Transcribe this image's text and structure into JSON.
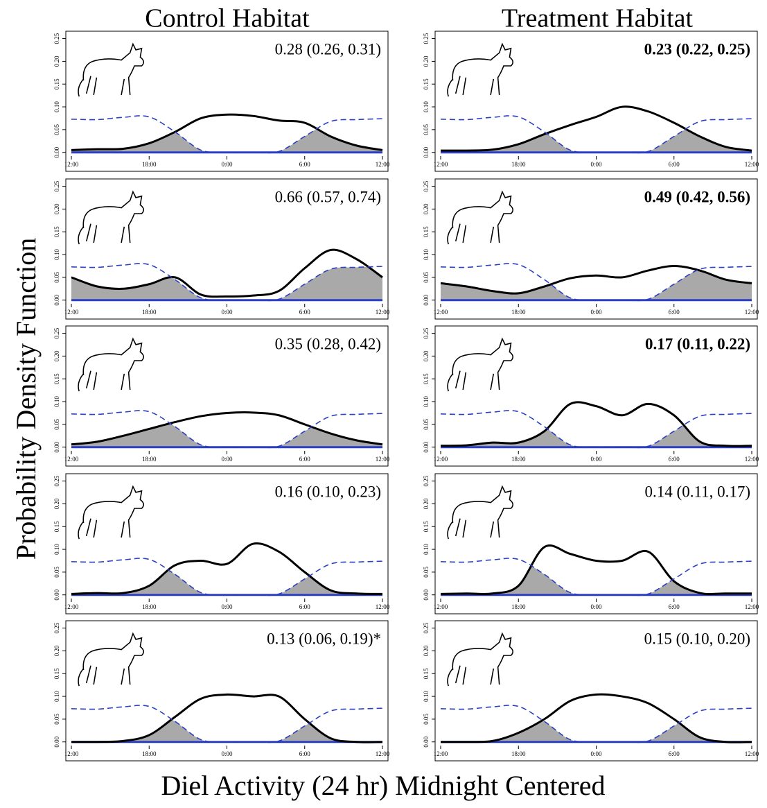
{
  "figure": {
    "column_titles": [
      "Control Habitat",
      "Treatment Habitat"
    ],
    "ylabel": "Probability Density Function",
    "xlabel": "Diel Activity (24 hr) Midnight Centered"
  },
  "chart_data": [
    {
      "type": "line",
      "annotation": "0.28 (0.26, 0.31)",
      "annotation_bold": false,
      "x": [
        -12,
        -10,
        -8,
        -6,
        -4,
        -2,
        0,
        2,
        4,
        6,
        8,
        10,
        12
      ],
      "xlim": [
        -12,
        12
      ],
      "xticks": [
        {
          "value": -12,
          "label": "12:00"
        },
        {
          "value": -6,
          "label": "18:00"
        },
        {
          "value": 0,
          "label": "0:00"
        },
        {
          "value": 6,
          "label": "6:00"
        },
        {
          "value": 12,
          "label": "12:00"
        }
      ],
      "ylim": [
        -0.005,
        0.26
      ],
      "yticks": [
        {
          "value": 0,
          "label": "0.00"
        },
        0.05,
        {
          "value": 0.1,
          "label": "0.10"
        },
        0.15,
        {
          "value": 0.2,
          "label": "0.20"
        },
        0.25
      ],
      "overlap_color": "#a9a9a9",
      "series": [
        {
          "color": "#000000",
          "style": "solid",
          "values": [
            0.005,
            0.007,
            0.008,
            0.02,
            0.045,
            0.075,
            0.083,
            0.08,
            0.07,
            0.065,
            0.035,
            0.015,
            0.005
          ]
        },
        {
          "color": "#2b3fc4",
          "style": "dashed",
          "values": [
            0.073,
            0.072,
            0.077,
            0.078,
            0.045,
            0.005,
            0,
            0,
            0.002,
            0.035,
            0.068,
            0.072,
            0.074
          ]
        }
      ]
    },
    {
      "type": "line",
      "annotation": "0.23 (0.22, 0.25)",
      "annotation_bold": true,
      "x": [
        -12,
        -10,
        -8,
        -6,
        -4,
        -2,
        0,
        2,
        4,
        6,
        8,
        10,
        12
      ],
      "xlim": [
        -12,
        12
      ],
      "xticks": [
        {
          "value": -12,
          "label": "12:00"
        },
        {
          "value": -6,
          "label": "18:00"
        },
        {
          "value": 0,
          "label": "0:00"
        },
        {
          "value": 6,
          "label": "6:00"
        },
        {
          "value": 12,
          "label": "12:00"
        }
      ],
      "ylim": [
        -0.005,
        0.26
      ],
      "yticks": [
        {
          "value": 0,
          "label": "0.00"
        },
        0.05,
        {
          "value": 0.1,
          "label": "0.10"
        },
        0.15,
        {
          "value": 0.2,
          "label": "0.20"
        },
        0.25
      ],
      "overlap_color": "#a9a9a9",
      "series": [
        {
          "color": "#000000",
          "style": "solid",
          "values": [
            0.004,
            0.004,
            0.006,
            0.018,
            0.04,
            0.06,
            0.078,
            0.1,
            0.09,
            0.065,
            0.035,
            0.012,
            0.004
          ]
        },
        {
          "color": "#2b3fc4",
          "style": "dashed",
          "values": [
            0.073,
            0.072,
            0.077,
            0.078,
            0.045,
            0.005,
            0,
            0,
            0.002,
            0.035,
            0.068,
            0.072,
            0.074
          ]
        }
      ]
    },
    {
      "type": "line",
      "annotation": "0.66 (0.57, 0.74)",
      "annotation_bold": false,
      "x": [
        -12,
        -10,
        -8,
        -6,
        -4,
        -2,
        0,
        2,
        4,
        6,
        8,
        10,
        12
      ],
      "xlim": [
        -12,
        12
      ],
      "xticks": [
        {
          "value": -12,
          "label": "12:00"
        },
        {
          "value": -6,
          "label": "18:00"
        },
        {
          "value": 0,
          "label": "0:00"
        },
        {
          "value": 6,
          "label": "6:00"
        },
        {
          "value": 12,
          "label": "12:00"
        }
      ],
      "ylim": [
        -0.005,
        0.26
      ],
      "yticks": [
        {
          "value": 0,
          "label": "0.00"
        },
        0.05,
        {
          "value": 0.1,
          "label": "0.10"
        },
        0.15,
        {
          "value": 0.2,
          "label": "0.20"
        },
        0.25
      ],
      "overlap_color": "#a9a9a9",
      "series": [
        {
          "color": "#000000",
          "style": "solid",
          "values": [
            0.05,
            0.03,
            0.025,
            0.035,
            0.05,
            0.012,
            0.008,
            0.01,
            0.02,
            0.07,
            0.11,
            0.09,
            0.05
          ]
        },
        {
          "color": "#2b3fc4",
          "style": "dashed",
          "values": [
            0.073,
            0.072,
            0.077,
            0.078,
            0.045,
            0.005,
            0,
            0,
            0.002,
            0.035,
            0.068,
            0.072,
            0.074
          ]
        }
      ]
    },
    {
      "type": "line",
      "annotation": "0.49 (0.42, 0.56)",
      "annotation_bold": true,
      "x": [
        -12,
        -10,
        -8,
        -6,
        -4,
        -2,
        0,
        2,
        4,
        6,
        8,
        10,
        12
      ],
      "xlim": [
        -12,
        12
      ],
      "xticks": [
        {
          "value": -12,
          "label": "12:00"
        },
        {
          "value": -6,
          "label": "18:00"
        },
        {
          "value": 0,
          "label": "0:00"
        },
        {
          "value": 6,
          "label": "6:00"
        },
        {
          "value": 12,
          "label": "12:00"
        }
      ],
      "ylim": [
        -0.005,
        0.26
      ],
      "yticks": [
        {
          "value": 0,
          "label": "0.00"
        },
        0.05,
        {
          "value": 0.1,
          "label": "0.10"
        },
        0.15,
        {
          "value": 0.2,
          "label": "0.20"
        },
        0.25
      ],
      "overlap_color": "#a9a9a9",
      "series": [
        {
          "color": "#000000",
          "style": "solid",
          "values": [
            0.037,
            0.03,
            0.02,
            0.015,
            0.03,
            0.048,
            0.054,
            0.05,
            0.065,
            0.075,
            0.065,
            0.045,
            0.037
          ]
        },
        {
          "color": "#2b3fc4",
          "style": "dashed",
          "values": [
            0.073,
            0.072,
            0.077,
            0.078,
            0.045,
            0.005,
            0,
            0,
            0.002,
            0.035,
            0.068,
            0.072,
            0.074
          ]
        }
      ]
    },
    {
      "type": "line",
      "annotation": "0.35 (0.28, 0.42)",
      "annotation_bold": false,
      "x": [
        -12,
        -10,
        -8,
        -6,
        -4,
        -2,
        0,
        2,
        4,
        6,
        8,
        10,
        12
      ],
      "xlim": [
        -12,
        12
      ],
      "xticks": [
        {
          "value": -12,
          "label": "12:00"
        },
        {
          "value": -6,
          "label": "18:00"
        },
        {
          "value": 0,
          "label": "0:00"
        },
        {
          "value": 6,
          "label": "6:00"
        },
        {
          "value": 12,
          "label": "12:00"
        }
      ],
      "ylim": [
        -0.005,
        0.26
      ],
      "yticks": [
        {
          "value": 0,
          "label": "0.00"
        },
        0.05,
        {
          "value": 0.1,
          "label": "0.10"
        },
        0.15,
        {
          "value": 0.2,
          "label": "0.20"
        },
        0.25
      ],
      "overlap_color": "#a9a9a9",
      "series": [
        {
          "color": "#000000",
          "style": "solid",
          "values": [
            0.006,
            0.012,
            0.025,
            0.04,
            0.055,
            0.068,
            0.075,
            0.076,
            0.07,
            0.05,
            0.03,
            0.015,
            0.006
          ]
        },
        {
          "color": "#2b3fc4",
          "style": "dashed",
          "values": [
            0.073,
            0.072,
            0.077,
            0.078,
            0.045,
            0.005,
            0,
            0,
            0.002,
            0.035,
            0.068,
            0.072,
            0.074
          ]
        }
      ]
    },
    {
      "type": "line",
      "annotation": "0.17 (0.11, 0.22)",
      "annotation_bold": true,
      "x": [
        -12,
        -10,
        -8,
        -6,
        -4,
        -2,
        0,
        2,
        4,
        6,
        8,
        10,
        12
      ],
      "xlim": [
        -12,
        12
      ],
      "xticks": [
        {
          "value": -12,
          "label": "12:00"
        },
        {
          "value": -6,
          "label": "18:00"
        },
        {
          "value": 0,
          "label": "0:00"
        },
        {
          "value": 6,
          "label": "6:00"
        },
        {
          "value": 12,
          "label": "12:00"
        }
      ],
      "ylim": [
        -0.005,
        0.26
      ],
      "yticks": [
        {
          "value": 0,
          "label": "0.00"
        },
        0.05,
        {
          "value": 0.1,
          "label": "0.10"
        },
        0.15,
        {
          "value": 0.2,
          "label": "0.20"
        },
        0.25
      ],
      "overlap_color": "#a9a9a9",
      "series": [
        {
          "color": "#000000",
          "style": "solid",
          "values": [
            0.003,
            0.004,
            0.01,
            0.01,
            0.035,
            0.095,
            0.09,
            0.07,
            0.095,
            0.07,
            0.012,
            0.003,
            0.003
          ]
        },
        {
          "color": "#2b3fc4",
          "style": "dashed",
          "values": [
            0.073,
            0.072,
            0.077,
            0.078,
            0.045,
            0.005,
            0,
            0,
            0.002,
            0.035,
            0.068,
            0.072,
            0.074
          ]
        }
      ]
    },
    {
      "type": "line",
      "annotation": "0.16 (0.10, 0.23)",
      "annotation_bold": false,
      "x": [
        -12,
        -10,
        -8,
        -6,
        -4,
        -2,
        0,
        2,
        4,
        6,
        8,
        10,
        12
      ],
      "xlim": [
        -12,
        12
      ],
      "xticks": [
        {
          "value": -12,
          "label": "12:00"
        },
        {
          "value": -6,
          "label": "18:00"
        },
        {
          "value": 0,
          "label": "0:00"
        },
        {
          "value": 6,
          "label": "6:00"
        },
        {
          "value": 12,
          "label": "12:00"
        }
      ],
      "ylim": [
        -0.005,
        0.26
      ],
      "yticks": [
        {
          "value": 0,
          "label": "0.00"
        },
        0.05,
        {
          "value": 0.1,
          "label": "0.10"
        },
        0.15,
        {
          "value": 0.2,
          "label": "0.20"
        },
        0.25
      ],
      "overlap_color": "#a9a9a9",
      "series": [
        {
          "color": "#000000",
          "style": "solid",
          "values": [
            0.002,
            0.004,
            0.004,
            0.02,
            0.065,
            0.075,
            0.068,
            0.112,
            0.095,
            0.05,
            0.01,
            0.003,
            0.002
          ]
        },
        {
          "color": "#2b3fc4",
          "style": "dashed",
          "values": [
            0.073,
            0.072,
            0.077,
            0.078,
            0.045,
            0.005,
            0,
            0,
            0.002,
            0.035,
            0.068,
            0.072,
            0.074
          ]
        }
      ]
    },
    {
      "type": "line",
      "annotation": "0.14 (0.11, 0.17)",
      "annotation_bold": false,
      "x": [
        -12,
        -10,
        -8,
        -6,
        -4,
        -2,
        0,
        2,
        4,
        6,
        8,
        10,
        12
      ],
      "xlim": [
        -12,
        12
      ],
      "xticks": [
        {
          "value": -12,
          "label": "12:00"
        },
        {
          "value": -6,
          "label": "18:00"
        },
        {
          "value": 0,
          "label": "0:00"
        },
        {
          "value": 6,
          "label": "6:00"
        },
        {
          "value": 12,
          "label": "12:00"
        }
      ],
      "ylim": [
        -0.005,
        0.26
      ],
      "yticks": [
        {
          "value": 0,
          "label": "0.00"
        },
        0.05,
        {
          "value": 0.1,
          "label": "0.10"
        },
        0.15,
        {
          "value": 0.2,
          "label": "0.20"
        },
        0.25
      ],
      "overlap_color": "#a9a9a9",
      "series": [
        {
          "color": "#000000",
          "style": "solid",
          "values": [
            0.002,
            0.003,
            0.003,
            0.02,
            0.105,
            0.09,
            0.075,
            0.075,
            0.095,
            0.03,
            0.004,
            0.003,
            0.003
          ]
        },
        {
          "color": "#2b3fc4",
          "style": "dashed",
          "values": [
            0.073,
            0.072,
            0.077,
            0.078,
            0.045,
            0.005,
            0,
            0,
            0.002,
            0.035,
            0.068,
            0.072,
            0.074
          ]
        }
      ]
    },
    {
      "type": "line",
      "annotation": "0.13 (0.06, 0.19)*",
      "annotation_bold": false,
      "x": [
        -12,
        -10,
        -8,
        -6,
        -4,
        -2,
        0,
        2,
        4,
        6,
        8,
        10,
        12
      ],
      "xlim": [
        -12,
        12
      ],
      "xticks": [
        {
          "value": -12,
          "label": "12:00"
        },
        {
          "value": -6,
          "label": "18:00"
        },
        {
          "value": 0,
          "label": "0:00"
        },
        {
          "value": 6,
          "label": "6:00"
        },
        {
          "value": 12,
          "label": "12:00"
        }
      ],
      "ylim": [
        -0.005,
        0.26
      ],
      "yticks": [
        {
          "value": 0,
          "label": "0.00"
        },
        0.05,
        {
          "value": 0.1,
          "label": "0.10"
        },
        0.15,
        {
          "value": 0.2,
          "label": "0.20"
        },
        0.25
      ],
      "overlap_color": "#a9a9a9",
      "series": [
        {
          "color": "#000000",
          "style": "solid",
          "values": [
            0,
            0,
            0.002,
            0.015,
            0.055,
            0.095,
            0.104,
            0.1,
            0.1,
            0.05,
            0.008,
            0,
            0
          ]
        },
        {
          "color": "#2b3fc4",
          "style": "dashed",
          "values": [
            0.073,
            0.072,
            0.077,
            0.078,
            0.045,
            0.005,
            0,
            0,
            0.002,
            0.035,
            0.068,
            0.072,
            0.074
          ]
        }
      ]
    },
    {
      "type": "line",
      "annotation": "0.15 (0.10, 0.20)",
      "annotation_bold": false,
      "x": [
        -12,
        -10,
        -8,
        -6,
        -4,
        -2,
        0,
        2,
        4,
        6,
        8,
        10,
        12
      ],
      "xlim": [
        -12,
        12
      ],
      "xticks": [
        {
          "value": -12,
          "label": "12:00"
        },
        {
          "value": -6,
          "label": "18:00"
        },
        {
          "value": 0,
          "label": "0:00"
        },
        {
          "value": 6,
          "label": "6:00"
        },
        {
          "value": 12,
          "label": "12:00"
        }
      ],
      "ylim": [
        -0.005,
        0.26
      ],
      "yticks": [
        {
          "value": 0,
          "label": "0.00"
        },
        0.05,
        {
          "value": 0.1,
          "label": "0.10"
        },
        0.15,
        {
          "value": 0.2,
          "label": "0.20"
        },
        0.25
      ],
      "overlap_color": "#a9a9a9",
      "series": [
        {
          "color": "#000000",
          "style": "solid",
          "values": [
            0,
            0,
            0.002,
            0.02,
            0.05,
            0.09,
            0.104,
            0.1,
            0.085,
            0.05,
            0.01,
            0,
            0
          ]
        },
        {
          "color": "#2b3fc4",
          "style": "dashed",
          "values": [
            0.073,
            0.072,
            0.077,
            0.078,
            0.045,
            0.005,
            0,
            0,
            0.002,
            0.035,
            0.068,
            0.072,
            0.074
          ]
        }
      ]
    }
  ]
}
